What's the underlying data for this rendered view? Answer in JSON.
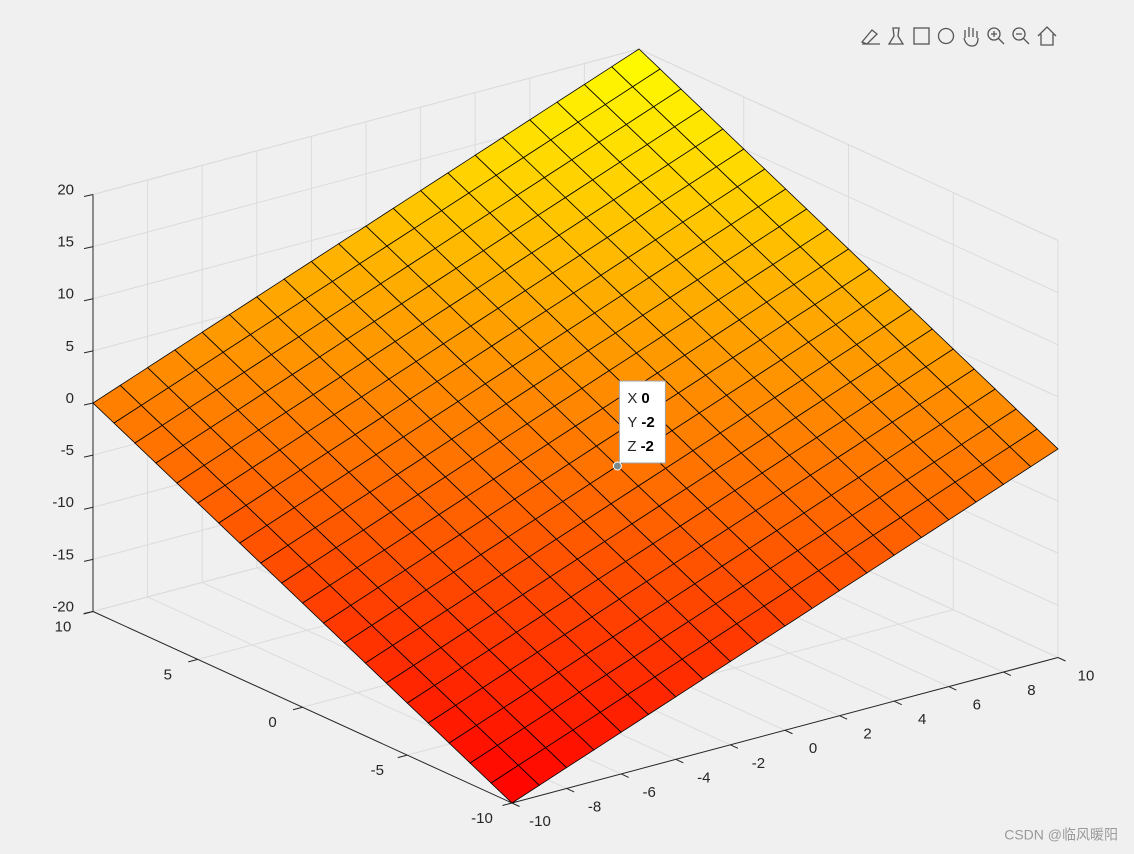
{
  "chart_data": {
    "type": "surface",
    "x": [
      -10,
      -9,
      -8,
      -7,
      -6,
      -5,
      -4,
      -3,
      -2,
      -1,
      0,
      1,
      2,
      3,
      4,
      5,
      6,
      7,
      8,
      9,
      10
    ],
    "y": [
      -10,
      -9,
      -8,
      -7,
      -6,
      -5,
      -4,
      -3,
      -2,
      -1,
      0,
      1,
      2,
      3,
      4,
      5,
      6,
      7,
      8,
      9,
      10
    ],
    "z": [
      [
        -20,
        -19,
        -18,
        -17,
        -16,
        -15,
        -14,
        -13,
        -12,
        -11,
        -10,
        -9,
        -8,
        -7,
        -6,
        -5,
        -4,
        -3,
        -2,
        -1,
        0
      ],
      [
        -19,
        -18,
        -17,
        -16,
        -15,
        -14,
        -13,
        -12,
        -11,
        -10,
        -9,
        -8,
        -7,
        -6,
        -5,
        -4,
        -3,
        -2,
        -1,
        0,
        1
      ],
      [
        -18,
        -17,
        -16,
        -15,
        -14,
        -13,
        -12,
        -11,
        -10,
        -9,
        -8,
        -7,
        -6,
        -5,
        -4,
        -3,
        -2,
        -1,
        0,
        1,
        2
      ],
      [
        -17,
        -16,
        -15,
        -14,
        -13,
        -12,
        -11,
        -10,
        -9,
        -8,
        -7,
        -6,
        -5,
        -4,
        -3,
        -2,
        -1,
        0,
        1,
        2,
        3
      ],
      [
        -16,
        -15,
        -14,
        -13,
        -12,
        -11,
        -10,
        -9,
        -8,
        -7,
        -6,
        -5,
        -4,
        -3,
        -2,
        -1,
        0,
        1,
        2,
        3,
        4
      ],
      [
        -15,
        -14,
        -13,
        -12,
        -11,
        -10,
        -9,
        -8,
        -7,
        -6,
        -5,
        -4,
        -3,
        -2,
        -1,
        0,
        1,
        2,
        3,
        4,
        5
      ],
      [
        -14,
        -13,
        -12,
        -11,
        -10,
        -9,
        -8,
        -7,
        -6,
        -5,
        -4,
        -3,
        -2,
        -1,
        0,
        1,
        2,
        3,
        4,
        5,
        6
      ],
      [
        -13,
        -12,
        -11,
        -10,
        -9,
        -8,
        -7,
        -6,
        -5,
        -4,
        -3,
        -2,
        -1,
        0,
        1,
        2,
        3,
        4,
        5,
        6,
        7
      ],
      [
        -12,
        -11,
        -10,
        -9,
        -8,
        -7,
        -6,
        -5,
        -4,
        -3,
        -2,
        -1,
        0,
        1,
        2,
        3,
        4,
        5,
        6,
        7,
        8
      ],
      [
        -11,
        -10,
        -9,
        -8,
        -7,
        -6,
        -5,
        -4,
        -3,
        -2,
        -1,
        0,
        1,
        2,
        3,
        4,
        5,
        6,
        7,
        8,
        9
      ],
      [
        -10,
        -9,
        -8,
        -7,
        -6,
        -5,
        -4,
        -3,
        -2,
        -1,
        0,
        1,
        2,
        3,
        4,
        5,
        6,
        7,
        8,
        9,
        10
      ],
      [
        -9,
        -8,
        -7,
        -6,
        -5,
        -4,
        -3,
        -2,
        -1,
        0,
        1,
        2,
        3,
        4,
        5,
        6,
        7,
        8,
        9,
        10,
        11
      ],
      [
        -8,
        -7,
        -6,
        -5,
        -4,
        -3,
        -2,
        -1,
        0,
        1,
        2,
        3,
        4,
        5,
        6,
        7,
        8,
        9,
        10,
        11,
        12
      ],
      [
        -7,
        -6,
        -5,
        -4,
        -3,
        -2,
        -1,
        0,
        1,
        2,
        3,
        4,
        5,
        6,
        7,
        8,
        9,
        10,
        11,
        12,
        13
      ],
      [
        -6,
        -5,
        -4,
        -3,
        -2,
        -1,
        0,
        1,
        2,
        3,
        4,
        5,
        6,
        7,
        8,
        9,
        10,
        11,
        12,
        13,
        14
      ],
      [
        -5,
        -4,
        -3,
        -2,
        -1,
        0,
        1,
        2,
        3,
        4,
        5,
        6,
        7,
        8,
        9,
        10,
        11,
        12,
        13,
        14,
        15
      ],
      [
        -4,
        -3,
        -2,
        -1,
        0,
        1,
        2,
        3,
        4,
        5,
        6,
        7,
        8,
        9,
        10,
        11,
        12,
        13,
        14,
        15,
        16
      ],
      [
        -3,
        -2,
        -1,
        0,
        1,
        2,
        3,
        4,
        5,
        6,
        7,
        8,
        9,
        10,
        11,
        12,
        13,
        14,
        15,
        16,
        17
      ],
      [
        -2,
        -1,
        0,
        1,
        2,
        3,
        4,
        5,
        6,
        7,
        8,
        9,
        10,
        11,
        12,
        13,
        14,
        15,
        16,
        17,
        18
      ],
      [
        -1,
        0,
        1,
        2,
        3,
        4,
        5,
        6,
        7,
        8,
        9,
        10,
        11,
        12,
        13,
        14,
        15,
        16,
        17,
        18,
        19
      ],
      [
        0,
        1,
        2,
        3,
        4,
        5,
        6,
        7,
        8,
        9,
        10,
        11,
        12,
        13,
        14,
        15,
        16,
        17,
        18,
        19,
        20
      ]
    ],
    "xlim": [
      -10,
      10
    ],
    "ylim": [
      -10,
      10
    ],
    "zlim": [
      -20,
      20
    ],
    "xticks": [
      -10,
      -8,
      -6,
      -4,
      -2,
      0,
      2,
      4,
      6,
      8,
      10
    ],
    "yticks": [
      -10,
      -5,
      0,
      5,
      10
    ],
    "zticks": [
      -20,
      -15,
      -10,
      -5,
      0,
      5,
      10,
      15,
      20
    ],
    "grid": true,
    "colormap": [
      "#ff0000",
      "#ffff00"
    ],
    "edge_color": "#000000",
    "datatip": {
      "x_label": "X",
      "x": 0,
      "y_label": "Y",
      "y": -2,
      "z_label": "Z",
      "z": -2
    }
  },
  "watermark": "CSDN @临风暖阳"
}
